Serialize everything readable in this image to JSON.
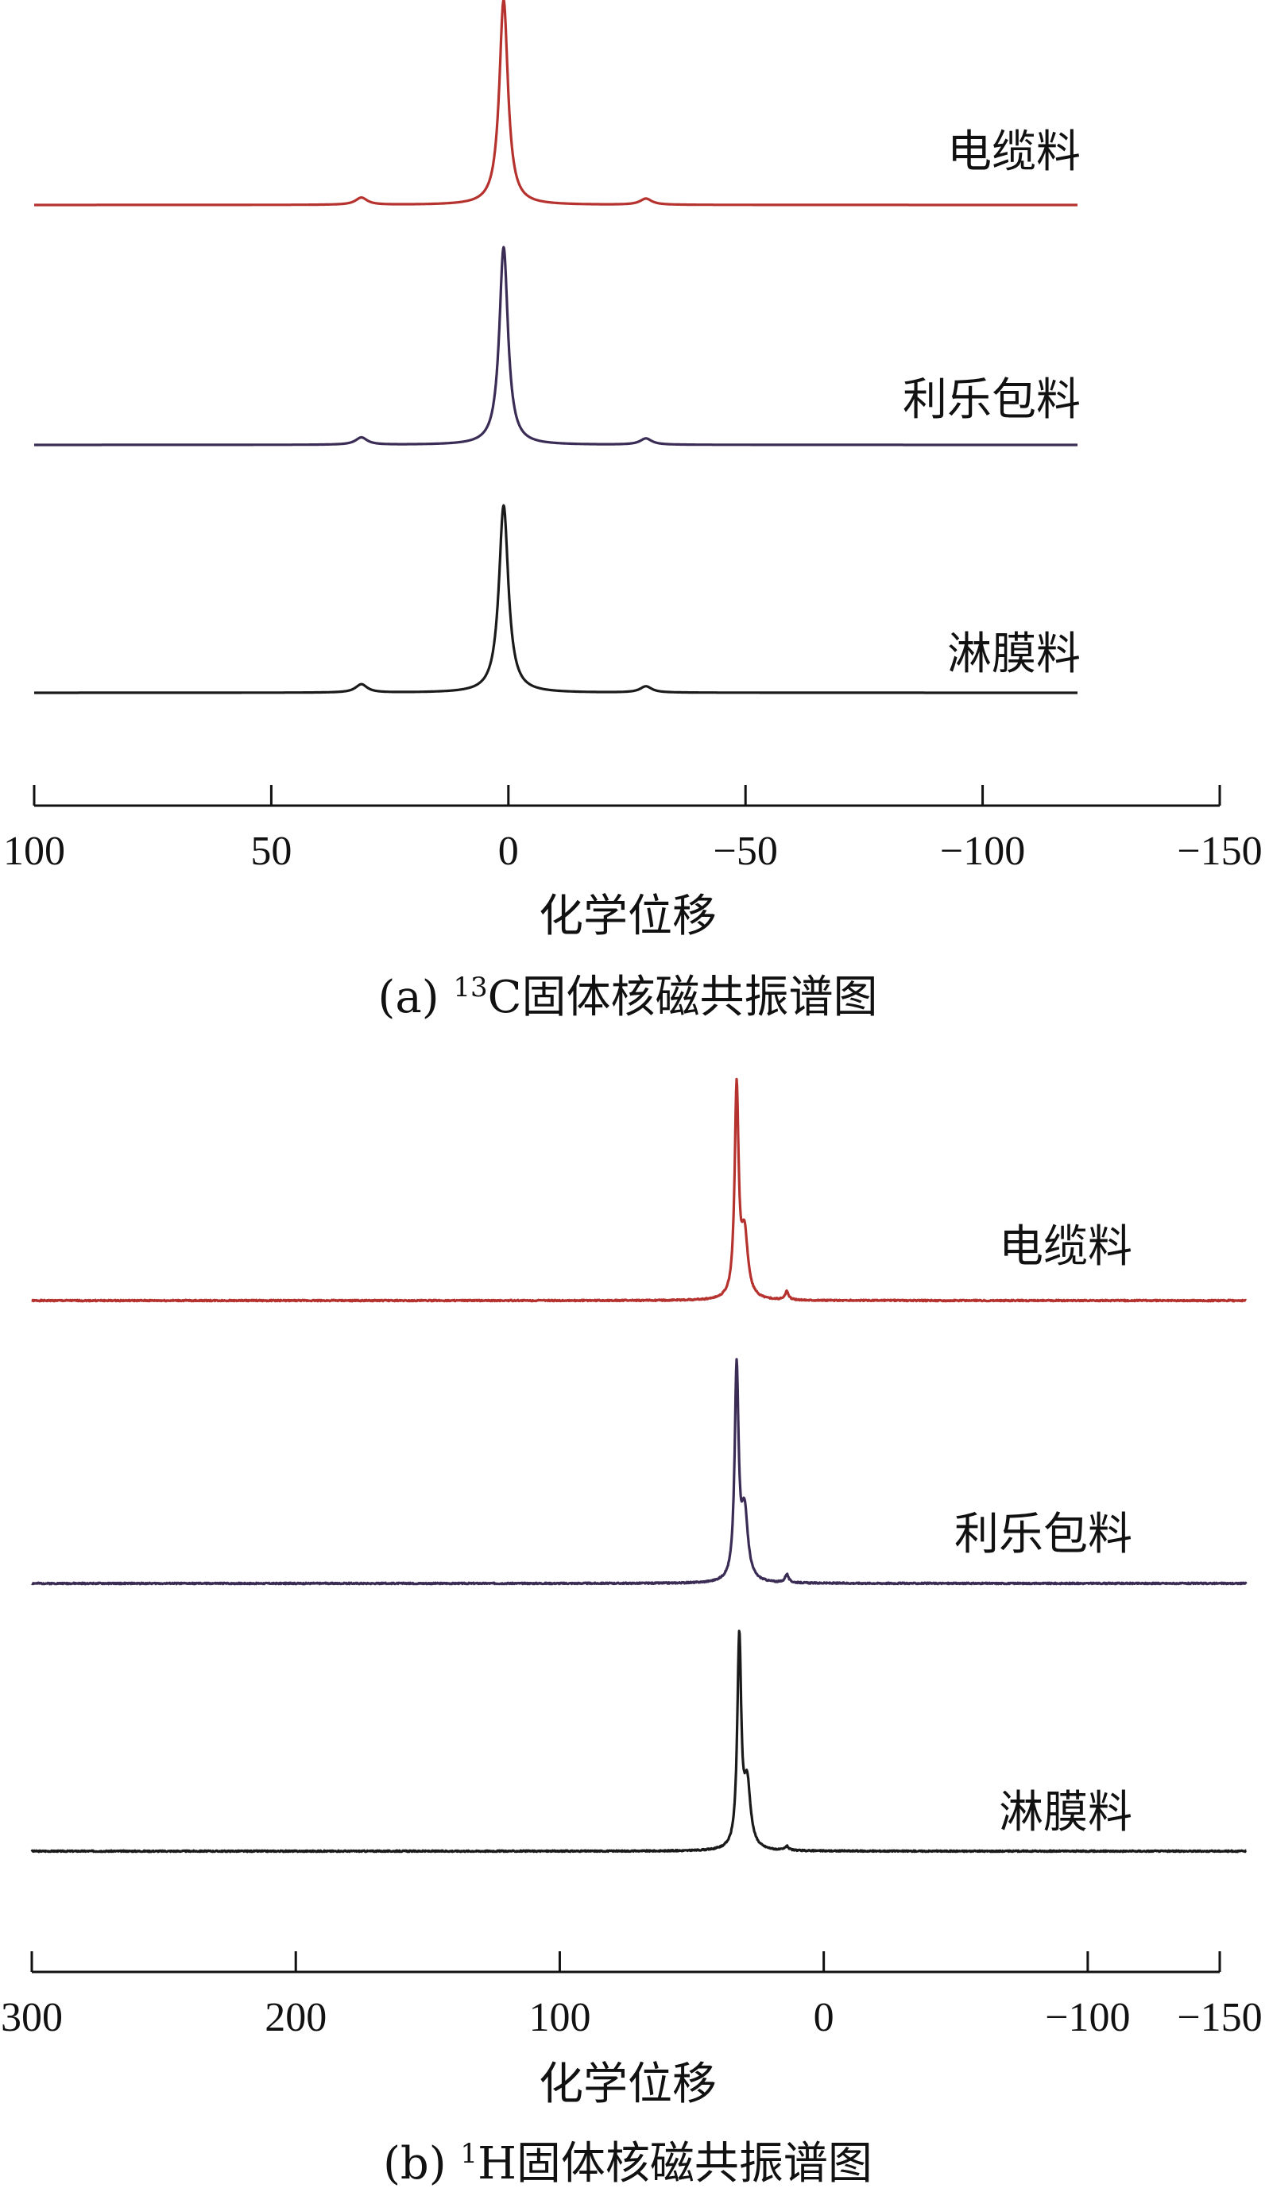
{
  "chart_data": [
    {
      "panel": "a",
      "type": "line",
      "xlabel": "化学位移",
      "caption": {
        "prefix": "(a) ",
        "sup": "13",
        "main": "C固体核磁共振谱图"
      },
      "xticks": [
        100,
        50,
        0,
        -50,
        -100,
        -150
      ],
      "xtick_labels": [
        "100",
        "50",
        "0",
        "−50",
        "−100",
        "−150"
      ],
      "xlim": [
        100,
        -150
      ],
      "data_xrange": [
        100,
        -120
      ],
      "grid": false,
      "series": [
        {
          "name": "电缆料",
          "color": "#b5322e",
          "peaks": [
            {
              "x": 1,
              "h": 1.0,
              "w": 1.1
            },
            {
              "x": 31,
              "h": 0.035,
              "w": 1.5
            },
            {
              "x": -29,
              "h": 0.03,
              "w": 1.5
            }
          ]
        },
        {
          "name": "利乐包料",
          "color": "#3a2c55",
          "peaks": [
            {
              "x": 1,
              "h": 0.95,
              "w": 1.1
            },
            {
              "x": 31,
              "h": 0.035,
              "w": 1.5
            },
            {
              "x": -29,
              "h": 0.03,
              "w": 1.5
            }
          ]
        },
        {
          "name": "淋膜料",
          "color": "#1a1a1a",
          "peaks": [
            {
              "x": 1,
              "h": 0.9,
              "w": 1.2
            },
            {
              "x": 31,
              "h": 0.04,
              "w": 1.5
            },
            {
              "x": -29,
              "h": 0.03,
              "w": 1.5
            }
          ]
        }
      ]
    },
    {
      "panel": "b",
      "type": "line",
      "xlabel": "化学位移",
      "caption": {
        "prefix": "(b) ",
        "sup": "1",
        "main": "H固体核磁共振谱图"
      },
      "xticks": [
        300,
        200,
        100,
        0,
        -100,
        -150
      ],
      "xtick_labels": [
        "300",
        "200",
        "100",
        "0",
        "−100",
        "−150"
      ],
      "xlim": [
        300,
        -150
      ],
      "data_xrange": [
        300,
        -160
      ],
      "grid": false,
      "series": [
        {
          "name": "电缆料",
          "color": "#b5322e",
          "peaks": [
            {
              "x": 33,
              "h": 1.0,
              "w": 0.9
            },
            {
              "x": 30,
              "h": 0.3,
              "w": 1.5
            },
            {
              "x": 14,
              "h": 0.04,
              "w": 0.8
            }
          ]
        },
        {
          "name": "利乐包料",
          "color": "#3a2c55",
          "peaks": [
            {
              "x": 33,
              "h": 1.0,
              "w": 0.9
            },
            {
              "x": 30,
              "h": 0.32,
              "w": 1.5
            },
            {
              "x": 14,
              "h": 0.04,
              "w": 0.8
            }
          ]
        },
        {
          "name": "淋膜料",
          "color": "#1a1a1a",
          "peaks": [
            {
              "x": 32,
              "h": 1.0,
              "w": 0.9
            },
            {
              "x": 29,
              "h": 0.3,
              "w": 1.5
            },
            {
              "x": 14,
              "h": 0.02,
              "w": 0.8
            }
          ]
        }
      ]
    }
  ]
}
